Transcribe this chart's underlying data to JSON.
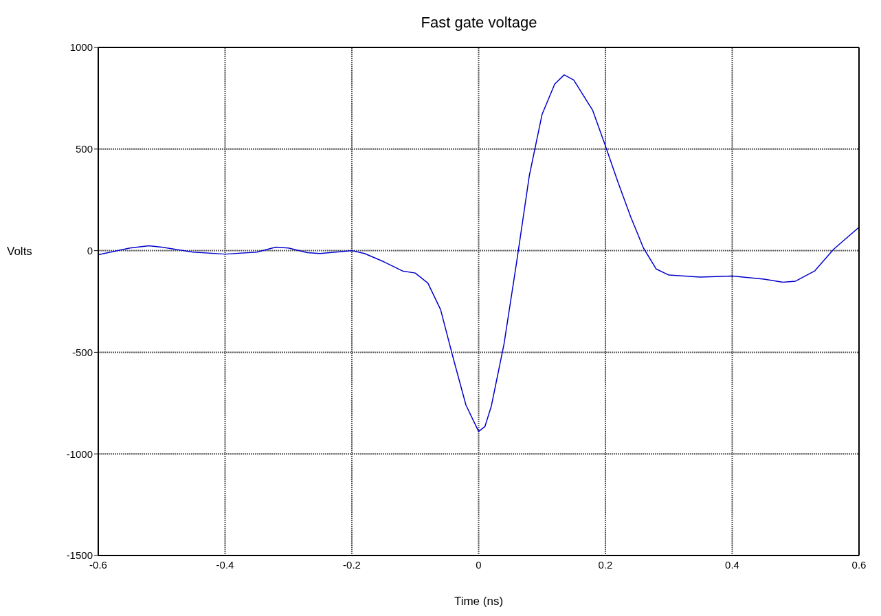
{
  "chart_data": {
    "type": "line",
    "title": "Fast gate voltage",
    "xlabel": "Time (ns)",
    "ylabel": "Volts",
    "x": [
      -0.6,
      -0.55,
      -0.52,
      -0.5,
      -0.45,
      -0.4,
      -0.35,
      -0.32,
      -0.3,
      -0.27,
      -0.25,
      -0.2,
      -0.18,
      -0.15,
      -0.12,
      -0.1,
      -0.08,
      -0.06,
      -0.04,
      -0.02,
      0,
      0.01,
      0.02,
      0.04,
      0.06,
      0.08,
      0.1,
      0.12,
      0.135,
      0.15,
      0.18,
      0.2,
      0.22,
      0.24,
      0.26,
      0.28,
      0.3,
      0.35,
      0.4,
      0.45,
      0.48,
      0.5,
      0.53,
      0.56,
      0.6
    ],
    "series": [
      {
        "color": "#0000cc",
        "values": [
          -20,
          13,
          24,
          17,
          -7,
          -17,
          -7,
          17,
          13,
          -10,
          -14,
          0,
          -14,
          -54,
          -100,
          -110,
          -160,
          -290,
          -530,
          -760,
          -890,
          -865,
          -765,
          -460,
          -55,
          370,
          670,
          820,
          865,
          840,
          690,
          515,
          335,
          165,
          13,
          -90,
          -120,
          -130,
          -125,
          -140,
          -155,
          -150,
          -100,
          7,
          115
        ]
      }
    ],
    "xlim": [
      -0.6,
      0.6
    ],
    "xticks": [
      -0.6,
      -0.4,
      -0.2,
      0,
      0.2,
      0.4,
      0.6
    ],
    "ylim": [
      -1500,
      1000
    ],
    "yticks": [
      -1500,
      -1000,
      -500,
      0,
      500,
      1000
    ],
    "grid": true,
    "legend": false,
    "marker": "none",
    "line_style": "solid"
  }
}
